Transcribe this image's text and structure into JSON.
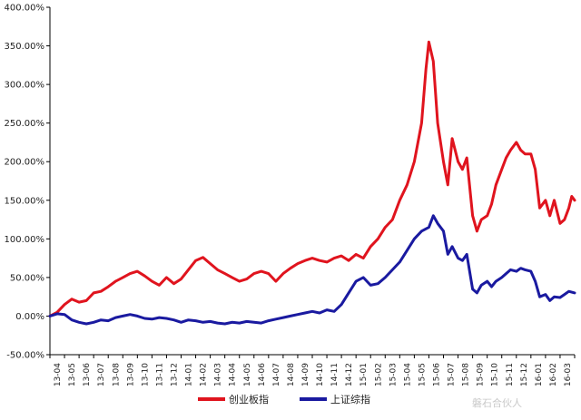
{
  "watermark": "磐石合伙人",
  "chart_data": {
    "type": "line",
    "ylim": [
      -50,
      400
    ],
    "ytick_values": [
      -50,
      0,
      50,
      100,
      150,
      200,
      250,
      300,
      350,
      400
    ],
    "ytick_labels": [
      "-50.00%",
      "0.00%",
      "50.00%",
      "100.00%",
      "150.00%",
      "200.00%",
      "250.00%",
      "300.00%",
      "350.00%",
      "400.00%"
    ],
    "categories": [
      "13-04",
      "13-05",
      "13-06",
      "13-07",
      "13-08",
      "13-09",
      "13-10",
      "13-11",
      "13-12",
      "14-01",
      "14-02",
      "14-03",
      "14-04",
      "14-05",
      "14-06",
      "14-07",
      "14-08",
      "14-09",
      "14-10",
      "14-11",
      "14-12",
      "15-01",
      "15-02",
      "15-03",
      "15-04",
      "15-05",
      "15-06",
      "15-07",
      "15-08",
      "15-09",
      "15-10",
      "15-11",
      "15-12",
      "16-01",
      "16-02",
      "16-03"
    ],
    "legend_position": "bottom",
    "series": [
      {
        "name": "创业板指",
        "color": "#e0141e",
        "values": [
          [
            0,
            0
          ],
          [
            0.5,
            5
          ],
          [
            1,
            15
          ],
          [
            1.5,
            22
          ],
          [
            2,
            18
          ],
          [
            2.5,
            20
          ],
          [
            3,
            30
          ],
          [
            3.5,
            32
          ],
          [
            4,
            38
          ],
          [
            4.5,
            45
          ],
          [
            5,
            50
          ],
          [
            5.5,
            55
          ],
          [
            6,
            58
          ],
          [
            6.5,
            52
          ],
          [
            7,
            45
          ],
          [
            7.5,
            40
          ],
          [
            8,
            50
          ],
          [
            8.5,
            42
          ],
          [
            9,
            48
          ],
          [
            9.5,
            60
          ],
          [
            10,
            72
          ],
          [
            10.5,
            76
          ],
          [
            11,
            68
          ],
          [
            11.5,
            60
          ],
          [
            12,
            55
          ],
          [
            12.5,
            50
          ],
          [
            13,
            45
          ],
          [
            13.5,
            48
          ],
          [
            14,
            55
          ],
          [
            14.5,
            58
          ],
          [
            15,
            55
          ],
          [
            15.5,
            45
          ],
          [
            16,
            55
          ],
          [
            16.5,
            62
          ],
          [
            17,
            68
          ],
          [
            17.5,
            72
          ],
          [
            18,
            75
          ],
          [
            18.5,
            72
          ],
          [
            19,
            70
          ],
          [
            19.5,
            75
          ],
          [
            20,
            78
          ],
          [
            20.5,
            72
          ],
          [
            21,
            80
          ],
          [
            21.5,
            75
          ],
          [
            22,
            90
          ],
          [
            22.5,
            100
          ],
          [
            23,
            115
          ],
          [
            23.5,
            125
          ],
          [
            24,
            150
          ],
          [
            24.5,
            170
          ],
          [
            25,
            200
          ],
          [
            25.5,
            250
          ],
          [
            25.8,
            320
          ],
          [
            26,
            355
          ],
          [
            26.3,
            330
          ],
          [
            26.6,
            250
          ],
          [
            27,
            200
          ],
          [
            27.3,
            170
          ],
          [
            27.6,
            230
          ],
          [
            28,
            200
          ],
          [
            28.3,
            190
          ],
          [
            28.6,
            205
          ],
          [
            29,
            130
          ],
          [
            29.3,
            110
          ],
          [
            29.6,
            125
          ],
          [
            30,
            130
          ],
          [
            30.3,
            145
          ],
          [
            30.6,
            170
          ],
          [
            31,
            190
          ],
          [
            31.3,
            205
          ],
          [
            31.6,
            215
          ],
          [
            32,
            225
          ],
          [
            32.3,
            215
          ],
          [
            32.6,
            210
          ],
          [
            33,
            210
          ],
          [
            33.3,
            190
          ],
          [
            33.6,
            140
          ],
          [
            34,
            150
          ],
          [
            34.3,
            130
          ],
          [
            34.6,
            150
          ],
          [
            35,
            120
          ],
          [
            35.3,
            125
          ],
          [
            35.6,
            140
          ],
          [
            35.8,
            155
          ],
          [
            36,
            150
          ]
        ]
      },
      {
        "name": "上证综指",
        "color": "#1a1aa0",
        "values": [
          [
            0,
            0
          ],
          [
            0.5,
            3
          ],
          [
            1,
            2
          ],
          [
            1.5,
            -5
          ],
          [
            2,
            -8
          ],
          [
            2.5,
            -10
          ],
          [
            3,
            -8
          ],
          [
            3.5,
            -5
          ],
          [
            4,
            -6
          ],
          [
            4.5,
            -2
          ],
          [
            5,
            0
          ],
          [
            5.5,
            2
          ],
          [
            6,
            0
          ],
          [
            6.5,
            -3
          ],
          [
            7,
            -4
          ],
          [
            7.5,
            -2
          ],
          [
            8,
            -3
          ],
          [
            8.5,
            -5
          ],
          [
            9,
            -8
          ],
          [
            9.5,
            -5
          ],
          [
            10,
            -6
          ],
          [
            10.5,
            -8
          ],
          [
            11,
            -7
          ],
          [
            11.5,
            -9
          ],
          [
            12,
            -10
          ],
          [
            12.5,
            -8
          ],
          [
            13,
            -9
          ],
          [
            13.5,
            -7
          ],
          [
            14,
            -8
          ],
          [
            14.5,
            -9
          ],
          [
            15,
            -6
          ],
          [
            15.5,
            -4
          ],
          [
            16,
            -2
          ],
          [
            16.5,
            0
          ],
          [
            17,
            2
          ],
          [
            17.5,
            4
          ],
          [
            18,
            6
          ],
          [
            18.5,
            4
          ],
          [
            19,
            8
          ],
          [
            19.5,
            6
          ],
          [
            20,
            15
          ],
          [
            20.5,
            30
          ],
          [
            21,
            45
          ],
          [
            21.5,
            50
          ],
          [
            22,
            40
          ],
          [
            22.5,
            42
          ],
          [
            23,
            50
          ],
          [
            23.5,
            60
          ],
          [
            24,
            70
          ],
          [
            24.5,
            85
          ],
          [
            25,
            100
          ],
          [
            25.5,
            110
          ],
          [
            26,
            115
          ],
          [
            26.3,
            130
          ],
          [
            26.6,
            120
          ],
          [
            27,
            110
          ],
          [
            27.3,
            80
          ],
          [
            27.6,
            90
          ],
          [
            28,
            75
          ],
          [
            28.3,
            72
          ],
          [
            28.6,
            80
          ],
          [
            29,
            35
          ],
          [
            29.3,
            30
          ],
          [
            29.6,
            40
          ],
          [
            30,
            45
          ],
          [
            30.3,
            38
          ],
          [
            30.6,
            45
          ],
          [
            31,
            50
          ],
          [
            31.3,
            55
          ],
          [
            31.6,
            60
          ],
          [
            32,
            58
          ],
          [
            32.3,
            62
          ],
          [
            32.6,
            60
          ],
          [
            33,
            58
          ],
          [
            33.3,
            45
          ],
          [
            33.6,
            25
          ],
          [
            34,
            28
          ],
          [
            34.3,
            20
          ],
          [
            34.6,
            25
          ],
          [
            35,
            24
          ],
          [
            35.3,
            28
          ],
          [
            35.6,
            32
          ],
          [
            36,
            30
          ]
        ]
      }
    ]
  }
}
